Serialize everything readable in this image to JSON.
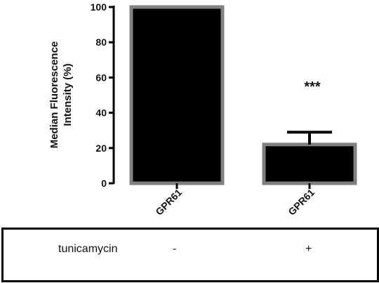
{
  "chart_data": {
    "type": "bar",
    "title": "",
    "xlabel": "",
    "ylabel_lines": [
      "Median Fluorescence",
      "Intensity (%)"
    ],
    "categories": [
      "GPR61",
      "GPR61"
    ],
    "values": [
      100,
      22
    ],
    "error_upper": [
      0,
      29
    ],
    "ylim": [
      0,
      100
    ],
    "yticks": [
      0,
      20,
      40,
      60,
      80,
      100
    ],
    "significance": [
      "",
      "***"
    ],
    "bar_fill": "#000000",
    "bar_border": "#808080",
    "grid": false
  },
  "treatment": {
    "label": "tunicamycin",
    "values": [
      "-",
      "+"
    ]
  }
}
